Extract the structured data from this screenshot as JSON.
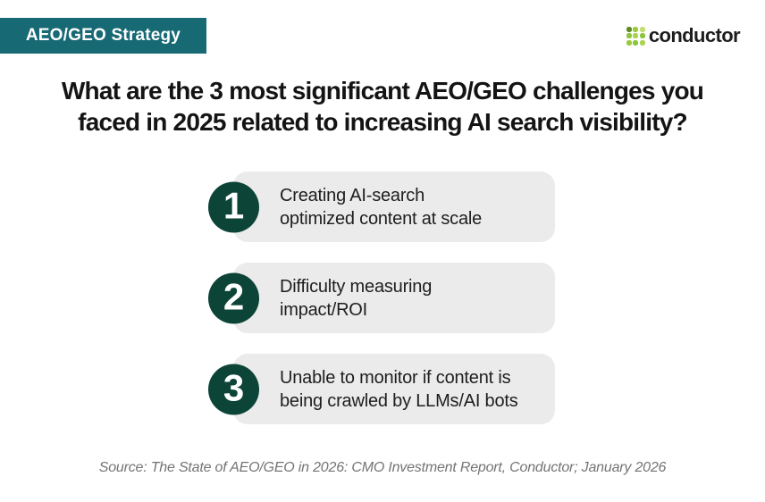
{
  "header": {
    "badge_label": "AEO/GEO Strategy",
    "logo_text": "conductor",
    "logo_icon": "conductor-dots-grid",
    "logo_dot_colors": [
      "#5f8a21",
      "#9aca3c",
      "#c0dc72",
      "#8cc63f",
      "#a8d44f",
      "#8cc63f",
      "#9aca3c",
      "#8cc63f",
      "#aad455"
    ]
  },
  "title": {
    "line1": "What are the 3 most significant AEO/GEO challenges you",
    "line2": "faced in 2025 related to increasing AI search visibility?"
  },
  "challenges": [
    {
      "number": "1",
      "line1": "Creating AI-search",
      "line2": "optimized content at scale"
    },
    {
      "number": "2",
      "line1": "Difficulty measuring",
      "line2": "impact/ROI"
    },
    {
      "number": "3",
      "line1": "Unable to monitor if content is",
      "line2": "being crawled by LLMs/AI bots"
    }
  ],
  "footer": {
    "source": "Source: The State of AEO/GEO in 2026: CMO Investment Report, Conductor; January 2026"
  },
  "colors": {
    "badge-bg": "#176974",
    "badge-text": "#ffffff",
    "circle-bg": "#0c4437",
    "box-bg": "#ebebeb",
    "title-text": "#141414",
    "body-text": "#1e1e1e",
    "footer-text": "#747474",
    "logo-text-color": "#1d1d1d"
  }
}
